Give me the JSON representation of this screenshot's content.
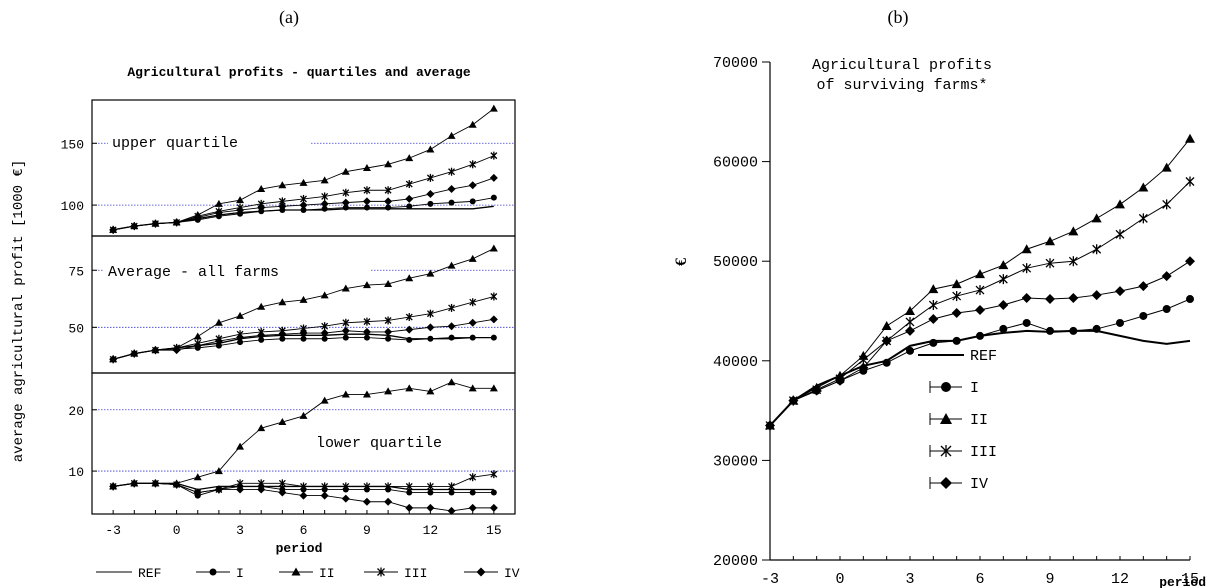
{
  "chart_data": [
    {
      "panel_label": "(a)",
      "type": "line",
      "title": "Agricultural profits - quartiles and average",
      "xlabel": "period",
      "ylabel": "average agricultural profit [1000 €]",
      "x": [
        -3,
        -2,
        -1,
        0,
        1,
        2,
        3,
        4,
        5,
        6,
        7,
        8,
        9,
        10,
        11,
        12,
        13,
        14,
        15
      ],
      "xticks": [
        "-3",
        "0",
        "3",
        "6",
        "9",
        "12",
        "15"
      ],
      "xlim": [
        -4,
        16
      ],
      "legend": [
        "REF",
        "I",
        "II",
        "III",
        "IV"
      ],
      "legend_position": "bottom",
      "panels": [
        {
          "label": "upper quartile",
          "ylim": [
            75,
            185
          ],
          "yticks": [
            "100",
            "150"
          ],
          "ref_lines": [
            100,
            150
          ],
          "series": [
            {
              "name": "REF",
              "values": [
                80,
                83,
                85,
                86,
                89,
                92,
                94,
                95,
                96,
                96,
                96,
                97,
                97,
                97,
                97,
                97,
                97,
                97,
                99
              ]
            },
            {
              "name": "I",
              "values": [
                80,
                83,
                85,
                86,
                88,
                91,
                93,
                95,
                96,
                96,
                97,
                98,
                98,
                98,
                99,
                101,
                102,
                103,
                106
              ]
            },
            {
              "name": "II",
              "values": [
                80,
                83,
                85,
                86,
                92,
                101,
                104,
                113,
                116,
                118,
                120,
                127,
                130,
                133,
                138,
                145,
                156,
                165,
                178
              ]
            },
            {
              "name": "III",
              "values": [
                80,
                83,
                85,
                86,
                91,
                95,
                98,
                101,
                103,
                105,
                107,
                110,
                112,
                112,
                117,
                122,
                127,
                133,
                140
              ]
            },
            {
              "name": "IV",
              "values": [
                80,
                83,
                85,
                86,
                90,
                94,
                96,
                98,
                99,
                100,
                101,
                102,
                103,
                103,
                105,
                109,
                113,
                116,
                122
              ]
            }
          ]
        },
        {
          "label": "Average - all farms",
          "ylim": [
            30,
            90
          ],
          "yticks": [
            "50",
            "75"
          ],
          "ref_lines": [
            50,
            75
          ],
          "series": [
            {
              "name": "REF",
              "values": [
                36,
                38.5,
                40,
                41,
                42,
                43,
                45,
                46,
                46.5,
                46.5,
                46.5,
                47,
                47,
                46.5,
                45,
                45,
                45,
                45.5,
                45.5
              ]
            },
            {
              "name": "I",
              "values": [
                36,
                38.5,
                40,
                40.5,
                41,
                42,
                43.5,
                44.5,
                45,
                45,
                45,
                45.5,
                45.5,
                45,
                44.5,
                45,
                45.5,
                45.5,
                45.5
              ]
            },
            {
              "name": "II",
              "values": [
                36,
                38.5,
                40,
                41,
                46,
                52,
                55,
                59,
                61,
                62,
                64,
                67,
                68.5,
                69,
                71.5,
                73.5,
                77,
                80,
                84.5
              ]
            },
            {
              "name": "III",
              "values": [
                36,
                38.5,
                40,
                41,
                43,
                45,
                47,
                48,
                48.5,
                49.5,
                50.5,
                52,
                52.5,
                53,
                54.5,
                56,
                58.5,
                61,
                63.5
              ]
            },
            {
              "name": "IV",
              "values": [
                36,
                38.5,
                40,
                40,
                42,
                44,
                45.5,
                46.5,
                47,
                47.5,
                47.5,
                48.5,
                48,
                48,
                49,
                50,
                50.5,
                52,
                53.5
              ]
            }
          ]
        },
        {
          "label": "lower quartile",
          "ylim": [
            3,
            26
          ],
          "yticks": [
            "10",
            "20"
          ],
          "ref_lines": [
            10,
            20
          ],
          "series": [
            {
              "name": "REF",
              "values": [
                7.5,
                8,
                8,
                8,
                7,
                7.5,
                7.5,
                7.5,
                7.5,
                7.5,
                7.5,
                7.5,
                7.5,
                7.5,
                7,
                7,
                7,
                7,
                7
              ]
            },
            {
              "name": "I",
              "values": [
                7.5,
                8,
                8,
                7.8,
                6,
                7,
                7.5,
                7.5,
                7,
                7,
                7,
                7,
                7,
                7,
                6.5,
                6.5,
                6.5,
                6.5,
                6.5
              ]
            },
            {
              "name": "II",
              "values": [
                7.5,
                8,
                8,
                8,
                9,
                10,
                14,
                17,
                18,
                19,
                21.5,
                22.5,
                22.5,
                23,
                23.5,
                23,
                24.5,
                23.5,
                23.5
              ]
            },
            {
              "name": "III",
              "values": [
                7.5,
                8,
                8,
                7.8,
                6.5,
                7,
                8,
                8,
                8,
                7.5,
                7.5,
                7.5,
                7.5,
                7.5,
                7.5,
                7.5,
                7.5,
                9,
                9.5
              ]
            },
            {
              "name": "IV",
              "values": [
                7.5,
                8,
                8,
                7.8,
                6.5,
                7,
                7,
                7,
                6.5,
                6,
                6,
                5.5,
                5,
                5,
                4,
                4,
                3.5,
                4,
                4
              ]
            }
          ]
        }
      ]
    },
    {
      "panel_label": "(b)",
      "type": "line",
      "title_lines": [
        "Agricultural profits",
        "of surviving farms*"
      ],
      "xlabel": "period",
      "ylabel": "€",
      "x": [
        -3,
        -2,
        -1,
        0,
        1,
        2,
        3,
        4,
        5,
        6,
        7,
        8,
        9,
        10,
        11,
        12,
        13,
        14,
        15
      ],
      "xticks": [
        "-3",
        "0",
        "3",
        "6",
        "9",
        "12",
        "15"
      ],
      "yticks": [
        "20000",
        "30000",
        "40000",
        "50000",
        "60000",
        "70000"
      ],
      "xlim": [
        -3,
        15
      ],
      "ylim": [
        20000,
        70000
      ],
      "legend_position": "inside-lower-center",
      "series": [
        {
          "name": "REF",
          "values": [
            33500,
            36000,
            37500,
            38500,
            39500,
            40000,
            41500,
            42000,
            42000,
            42500,
            42800,
            43000,
            42900,
            43000,
            43000,
            42500,
            42000,
            41700,
            42000
          ]
        },
        {
          "name": "I",
          "values": [
            33500,
            36000,
            37000,
            38000,
            39000,
            39800,
            41000,
            41800,
            42000,
            42500,
            43200,
            43800,
            43000,
            43000,
            43200,
            43800,
            44500,
            45200,
            46200
          ]
        },
        {
          "name": "II",
          "values": [
            33500,
            36000,
            37300,
            38500,
            40500,
            43500,
            45000,
            47200,
            47700,
            48700,
            49600,
            51200,
            52000,
            53000,
            54300,
            55700,
            57400,
            59400,
            62300
          ]
        },
        {
          "name": "III",
          "values": [
            33500,
            36000,
            37100,
            38200,
            40100,
            42000,
            43900,
            45600,
            46500,
            47100,
            48200,
            49300,
            49800,
            50000,
            51200,
            52700,
            54300,
            55700,
            58000
          ]
        },
        {
          "name": "IV",
          "values": [
            33500,
            36000,
            37000,
            38000,
            39300,
            42000,
            43000,
            44200,
            44800,
            45100,
            45600,
            46300,
            46200,
            46300,
            46600,
            47000,
            47500,
            48500,
            50000
          ]
        }
      ]
    }
  ]
}
